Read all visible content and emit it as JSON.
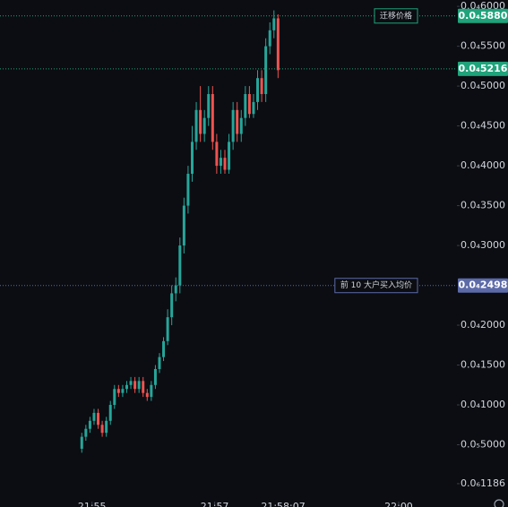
{
  "chart_data": {
    "type": "candlestick",
    "x": [
      78890,
      78894,
      78898,
      78902,
      78906,
      78910,
      78914,
      78918,
      78922,
      78926,
      78930,
      78934,
      78938,
      78942,
      78946,
      78950,
      78954,
      78958,
      78962,
      78966,
      78970,
      78974,
      78978,
      78982,
      78986,
      78990,
      78994,
      78998,
      79002,
      79006,
      79010,
      79014,
      79018,
      79022,
      79026,
      79030,
      79034,
      79038,
      79042,
      79046,
      79050,
      79054,
      79058,
      79062,
      79066,
      79070,
      79074,
      79078,
      79082
    ],
    "open": [
      4.5e-06,
      6e-06,
      7e-06,
      8e-06,
      9e-06,
      7.5e-06,
      6.5e-06,
      8e-06,
      1e-05,
      1.2e-05,
      1.15e-05,
      1.2e-05,
      1.25e-05,
      1.3e-05,
      1.2e-05,
      1.3e-05,
      1.15e-05,
      1.1e-05,
      1.25e-05,
      1.45e-05,
      1.6e-05,
      1.8e-05,
      2.1e-05,
      2.4e-05,
      2.5e-05,
      3e-05,
      3.5e-05,
      3.9e-05,
      4.3e-05,
      4.7e-05,
      4.4e-05,
      4.6e-05,
      4.9e-05,
      4.3e-05,
      4e-05,
      4.1e-05,
      3.95e-05,
      4.3e-05,
      4.7e-05,
      4.4e-05,
      4.6e-05,
      4.9e-05,
      4.65e-05,
      4.8e-05,
      5.1e-05,
      4.9e-05,
      5.5e-05,
      5.7e-05,
      5.85e-05
    ],
    "high": [
      6.5e-06,
      7.5e-06,
      8.5e-06,
      9.5e-06,
      9.5e-06,
      8e-06,
      8.5e-06,
      1.05e-05,
      1.25e-05,
      1.25e-05,
      1.25e-05,
      1.3e-05,
      1.35e-05,
      1.35e-05,
      1.35e-05,
      1.35e-05,
      1.2e-05,
      1.3e-05,
      1.5e-05,
      1.65e-05,
      1.85e-05,
      2.2e-05,
      2.5e-05,
      2.6e-05,
      3.1e-05,
      3.6e-05,
      4e-05,
      4.5e-05,
      4.8e-05,
      5e-05,
      4.7e-05,
      5e-05,
      5e-05,
      4.4e-05,
      4.2e-05,
      4.2e-05,
      4.4e-05,
      4.8e-05,
      4.8e-05,
      4.7e-05,
      5e-05,
      5e-05,
      4.9e-05,
      5.2e-05,
      5.2e-05,
      5.6e-05,
      5.8e-05,
      5.95e-05,
      5.9e-05
    ],
    "low": [
      4e-06,
      5.5e-06,
      6.5e-06,
      7.5e-06,
      7e-06,
      6e-06,
      6e-06,
      7.5e-06,
      9.5e-06,
      1.1e-05,
      1.1e-05,
      1.15e-05,
      1.2e-05,
      1.15e-05,
      1.15e-05,
      1.1e-05,
      1.05e-05,
      1.05e-05,
      1.2e-05,
      1.4e-05,
      1.55e-05,
      1.75e-05,
      2e-05,
      2.3e-05,
      2.4e-05,
      2.9e-05,
      3.4e-05,
      3.8e-05,
      4.2e-05,
      4.3e-05,
      4.3e-05,
      4.5e-05,
      4.2e-05,
      3.9e-05,
      3.9e-05,
      3.9e-05,
      3.9e-05,
      4.2e-05,
      4.3e-05,
      4.3e-05,
      4.5e-05,
      4.6e-05,
      4.6e-05,
      4.7e-05,
      4.8e-05,
      4.8e-05,
      5.4e-05,
      5.6e-05,
      5.1e-05
    ],
    "close": [
      6e-06,
      7e-06,
      8e-06,
      9e-06,
      7.5e-06,
      6.5e-06,
      8e-06,
      1e-05,
      1.2e-05,
      1.15e-05,
      1.2e-05,
      1.25e-05,
      1.3e-05,
      1.2e-05,
      1.3e-05,
      1.15e-05,
      1.1e-05,
      1.25e-05,
      1.45e-05,
      1.6e-05,
      1.8e-05,
      2.1e-05,
      2.4e-05,
      2.5e-05,
      3e-05,
      3.5e-05,
      3.9e-05,
      4.3e-05,
      4.7e-05,
      4.4e-05,
      4.6e-05,
      4.9e-05,
      4.3e-05,
      4e-05,
      4.1e-05,
      3.95e-05,
      4.3e-05,
      4.7e-05,
      4.4e-05,
      4.6e-05,
      4.9e-05,
      4.65e-05,
      4.8e-05,
      5.1e-05,
      4.9e-05,
      5.5e-05,
      5.7e-05,
      5.85e-05,
      5.2e-05
    ],
    "up_color": "#26a69a",
    "down_color": "#ef5350",
    "xlim": [
      78810,
      79257
    ],
    "xticks": [
      {
        "value": 78900,
        "label": "21:55"
      },
      {
        "value": 79020,
        "label": "21:57"
      },
      {
        "value": 79200,
        "label": "22:00"
      }
    ],
    "crosshair_time": {
      "value": 79087,
      "label": "21:58:07"
    },
    "ylim": [
      0,
      6.08e-05
    ],
    "yticks": [
      {
        "value": 6e-05,
        "label": "0.0₄6000"
      },
      {
        "value": 5.5e-05,
        "label": "0.0₄5500"
      },
      {
        "value": 5e-05,
        "label": "0.0₄5000"
      },
      {
        "value": 4.5e-05,
        "label": "0.0₄4500"
      },
      {
        "value": 4e-05,
        "label": "0.0₄4000"
      },
      {
        "value": 3.5e-05,
        "label": "0.0₄3500"
      },
      {
        "value": 3e-05,
        "label": "0.0₄3000"
      },
      {
        "value": 2e-05,
        "label": "0.0₄2000"
      },
      {
        "value": 1.5e-05,
        "label": "0.0₄1500"
      },
      {
        "value": 1e-05,
        "label": "0.0₄1000"
      },
      {
        "value": 5e-06,
        "label": "0.0₅5000"
      },
      {
        "value": 1.186e-07,
        "label": "0.0₆1186"
      }
    ],
    "price_lines": [
      {
        "value": 5.88e-05,
        "label": "0.0₄5880",
        "tag": "迁移价格",
        "color": "#1fa37a"
      },
      {
        "value": 5.216e-05,
        "label": "0.0₄5216",
        "color": "#1fa37a"
      },
      {
        "value": 2.498e-05,
        "label": "0.0₄2498",
        "tag": "前 10 大户买入均价",
        "color": "#5c6aa8"
      }
    ]
  }
}
